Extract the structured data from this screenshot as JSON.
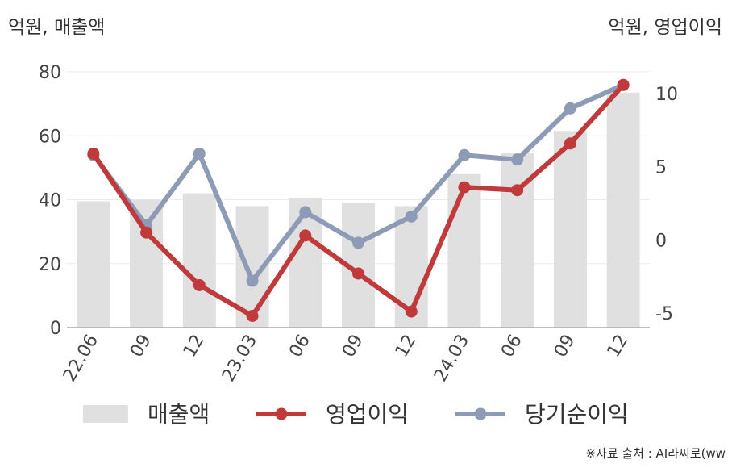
{
  "units": {
    "left": "억원, 매출액",
    "right": "억원, 영업이익"
  },
  "source": "※자료 출처 : AI라씨로(ww",
  "chart_data": {
    "type": "bar",
    "categories": [
      "22.06",
      "09",
      "12",
      "23.03",
      "06",
      "09",
      "12",
      "24.03",
      "06",
      "09",
      "12"
    ],
    "y_left": {
      "ticks": [
        0,
        20,
        40,
        60,
        80
      ],
      "ylim": [
        0,
        80
      ]
    },
    "y_right": {
      "ticks": [
        -5,
        0,
        5,
        10
      ],
      "ylim": [
        -6,
        11.5
      ]
    },
    "grid": true,
    "legend_position": "bottom",
    "series": [
      {
        "name": "매출액",
        "type": "bar",
        "axis": "left",
        "color": "#e0e0e0",
        "values": [
          39.5,
          40,
          42,
          38,
          40.5,
          39,
          38,
          48,
          54.5,
          61.5,
          73.5
        ]
      },
      {
        "name": "영업이익",
        "type": "line",
        "axis": "right",
        "color": "#c0393b",
        "values": [
          5.9,
          0.5,
          -3.1,
          -5.2,
          0.3,
          -2.3,
          -4.9,
          3.6,
          3.4,
          6.6,
          10.6
        ]
      },
      {
        "name": "당기순이익",
        "type": "line",
        "axis": "right",
        "color": "#8e9bb7",
        "values": [
          5.8,
          1.0,
          5.9,
          -2.8,
          1.9,
          -0.2,
          1.6,
          5.8,
          5.5,
          9.0,
          10.6
        ]
      }
    ]
  }
}
